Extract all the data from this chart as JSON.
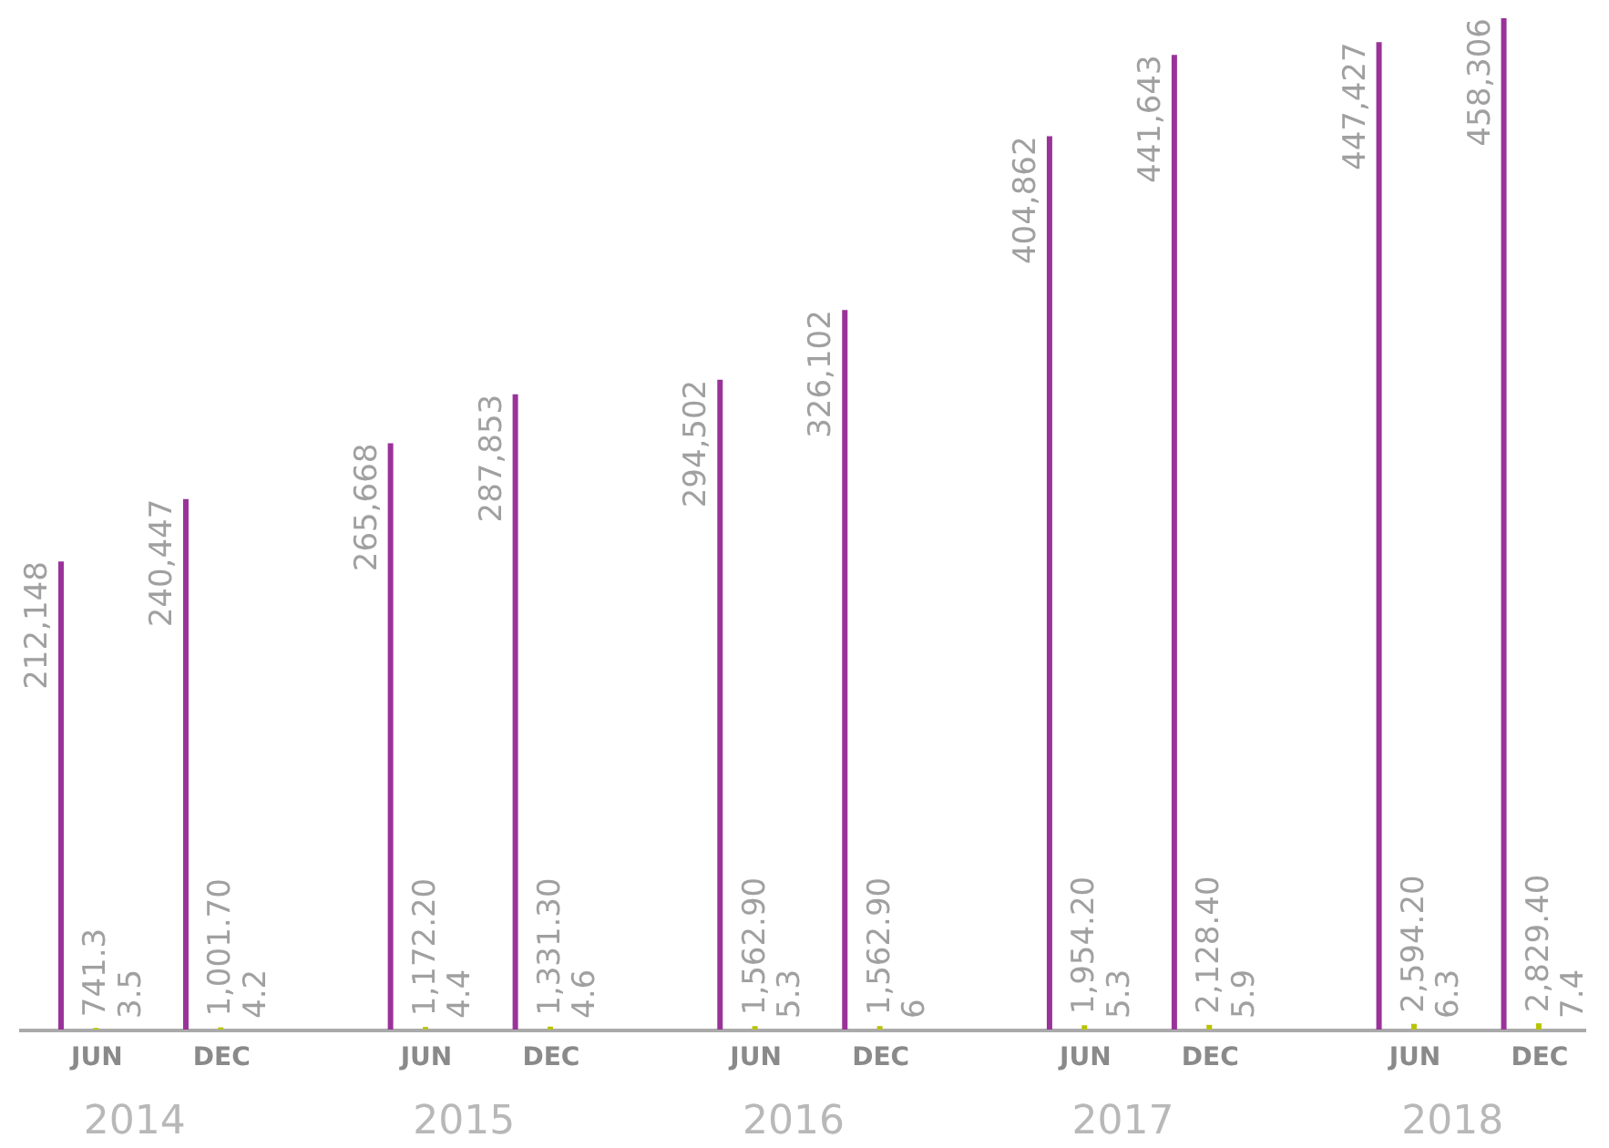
{
  "chart_data": {
    "type": "bar",
    "categories": [
      "JUN",
      "DEC",
      "JUN",
      "DEC",
      "JUN",
      "DEC",
      "JUN",
      "DEC",
      "JUN",
      "DEC"
    ],
    "series": [
      {
        "color": "#993399",
        "values": [
          212148,
          240447,
          265668,
          287853,
          294502,
          326102,
          404862,
          441643,
          447427,
          458306
        ],
        "value_labels": [
          "212,148",
          "240,447",
          "265,668",
          "287,853",
          "294,502",
          "326,102",
          "404,862",
          "441,643",
          "447,427",
          "458,306"
        ]
      },
      {
        "color": "#b8c400",
        "values": [
          741.3,
          1001.7,
          1172.2,
          1331.3,
          1562.9,
          1562.9,
          1954.2,
          2128.4,
          2594.2,
          2829.4
        ],
        "value_labels": [
          "741.3",
          "1,001.70",
          "1,172.20",
          "1,331.30",
          "1,562.90",
          "1,562.90",
          "1,954.20",
          "2,128.40",
          "2,594.20",
          "2,829.40"
        ]
      },
      {
        "color": "#1f6fb0",
        "values": [
          3.5,
          4.2,
          4.4,
          4.6,
          5.3,
          6,
          5.3,
          5.9,
          6.3,
          7.4
        ],
        "value_labels": [
          "3.5",
          "4.2",
          "4.4",
          "4.6",
          "5.3",
          "6",
          "5.3",
          "5.9",
          "6.3",
          "7.4"
        ]
      }
    ],
    "annotations": [
      "2014",
      "2015",
      "2016",
      "2017",
      "2018"
    ],
    "tick_labels": "x",
    "grid": false,
    "legend": false
  }
}
